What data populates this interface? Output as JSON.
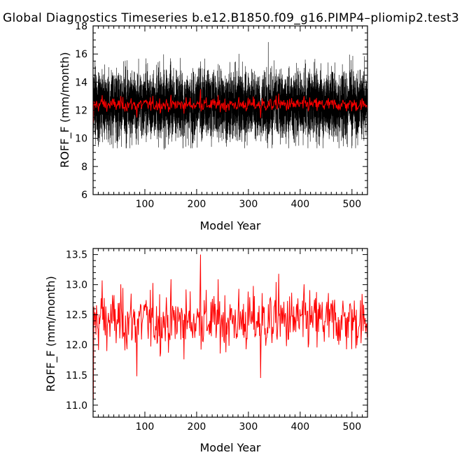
{
  "title": "Global Diagnostics Timeseries b.e12.B1850.f09_g16.PIMP4–pliomip2.test3",
  "chart_data": [
    {
      "type": "line",
      "xlabel": "Model Year",
      "ylabel": "ROFF_F (mm/month)",
      "xlim": [
        0,
        530
      ],
      "ylim": [
        6,
        18
      ],
      "yticks": [
        "6",
        "8",
        "10",
        "12",
        "14",
        "16",
        "18"
      ],
      "xticks": [
        "100",
        "200",
        "300",
        "400",
        "500"
      ],
      "series": [
        {
          "color": "#000000",
          "description": "monthly values, oscillating roughly between 9.5 and 16 around a mean of ~12.4",
          "x": [
            0,
            530
          ],
          "mean": 12.4,
          "range": [
            9.2,
            16.8
          ]
        },
        {
          "color": "#ff0000",
          "description": "annual mean, fluctuating around 12.4 between ~11.5 and ~13.5",
          "x": [
            0,
            530
          ],
          "mean": 12.4,
          "range": [
            11.5,
            13.5
          ]
        }
      ]
    },
    {
      "type": "line",
      "xlabel": "Model Year",
      "ylabel": "ROFF_F (mm/month)",
      "xlim": [
        0,
        530
      ],
      "ylim": [
        10.8,
        13.6
      ],
      "yticks": [
        "11.0",
        "11.5",
        "12.0",
        "12.5",
        "13.0",
        "13.5"
      ],
      "xticks": [
        "100",
        "200",
        "300",
        "400",
        "500"
      ],
      "series": [
        {
          "color": "#ff0000",
          "description": "annual mean ROFF_F, fluctuating around 12.4 with a peak of ~13.5 near year 207 and a minimum of ~11.45 near year 323",
          "x": [
            0,
            530
          ],
          "mean": 12.4,
          "range": [
            11.45,
            13.5
          ]
        }
      ]
    }
  ]
}
